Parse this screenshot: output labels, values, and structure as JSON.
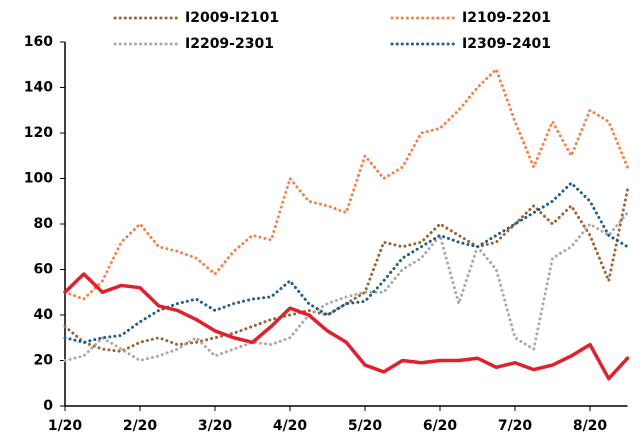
{
  "chart_data": {
    "type": "line",
    "categories": [
      "1/20",
      null,
      null,
      null,
      "2/20",
      null,
      null,
      null,
      "3/20",
      null,
      null,
      null,
      "4/20",
      null,
      null,
      null,
      "5/20",
      null,
      null,
      null,
      "6/20",
      null,
      null,
      null,
      "7/20",
      null,
      null,
      null,
      "8/20",
      null,
      null
    ],
    "series": [
      {
        "name": "I2009-I2101",
        "color": "#9c6433",
        "dotted": true,
        "values": [
          35,
          28,
          25,
          24,
          28,
          30,
          27,
          28,
          30,
          32,
          35,
          38,
          40,
          42,
          40,
          45,
          50,
          72,
          70,
          72,
          80,
          75,
          70,
          72,
          80,
          88,
          80,
          88,
          75,
          55,
          95
        ]
      },
      {
        "name": "I2109-2201",
        "color": "#f4824a",
        "dotted": true,
        "values": [
          50,
          47,
          55,
          72,
          80,
          70,
          68,
          65,
          58,
          68,
          75,
          73,
          100,
          90,
          88,
          85,
          110,
          100,
          105,
          120,
          122,
          130,
          140,
          148,
          125,
          105,
          125,
          110,
          130,
          125,
          105
        ]
      },
      {
        "name": "I2209-2301",
        "color": "#aaaaaa",
        "dotted": true,
        "values": [
          20,
          22,
          30,
          25,
          20,
          22,
          25,
          30,
          22,
          25,
          28,
          27,
          30,
          40,
          45,
          48,
          50,
          50,
          60,
          65,
          75,
          45,
          70,
          60,
          30,
          25,
          65,
          70,
          80,
          75,
          85
        ]
      },
      {
        "name": "I2309-2401",
        "color": "#1f5f8b",
        "dotted": true,
        "values": [
          30,
          28,
          30,
          31,
          37,
          42,
          45,
          47,
          42,
          45,
          47,
          48,
          55,
          45,
          40,
          45,
          46,
          55,
          65,
          70,
          75,
          72,
          70,
          75,
          80,
          85,
          90,
          98,
          90,
          75,
          70
        ]
      },
      {
        "color": "#e0202a",
        "dotted": false,
        "values": [
          50,
          58,
          50,
          53,
          52,
          44,
          42,
          38,
          33,
          30,
          28,
          35,
          43,
          40,
          33,
          28,
          18,
          15,
          20,
          19,
          20,
          20,
          21,
          17,
          19,
          16,
          18,
          22,
          27,
          12,
          21
        ]
      }
    ],
    "ylim": [
      0,
      160
    ],
    "yticks": [
      0,
      20,
      40,
      60,
      80,
      100,
      120,
      140,
      160
    ],
    "grid": false
  }
}
